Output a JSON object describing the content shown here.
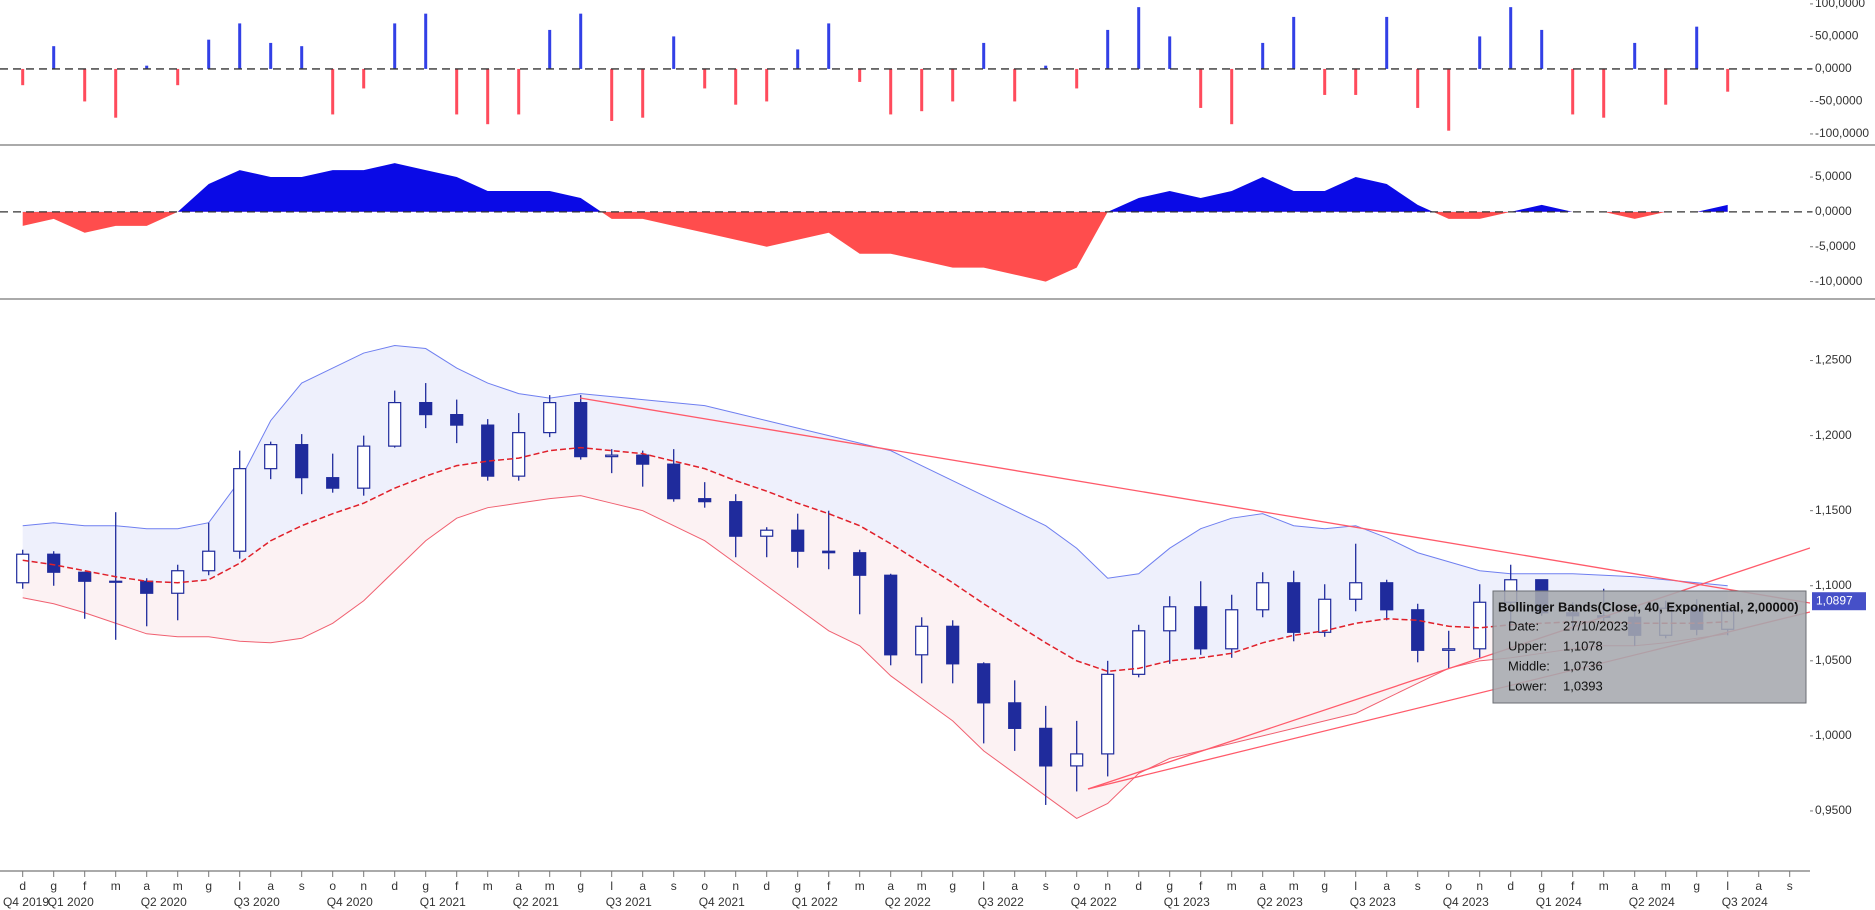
{
  "chart_data": [
    {
      "type": "bar",
      "values": [
        -25,
        35,
        -50,
        -75,
        5,
        -25,
        45,
        70,
        40,
        35,
        -70,
        -30,
        70,
        85,
        -70,
        -85,
        -70,
        60,
        85,
        -80,
        -75,
        50,
        -30,
        -55,
        -50,
        30,
        70,
        -20,
        -70,
        -65,
        -50,
        40,
        -50,
        5,
        -30,
        60,
        95,
        50,
        -60,
        -85,
        40,
        80,
        -40,
        -40,
        80,
        -60,
        -95,
        50,
        95,
        60,
        -70,
        -75,
        40,
        -55,
        65,
        -35,
        null,
        null
      ],
      "positive_color": "#3240e6",
      "negative_color": "#ff4b5c",
      "ylim": [
        -117,
        106
      ],
      "yticks": [
        {
          "value": 100,
          "label": "100,0000"
        },
        {
          "value": 50,
          "label": "50,0000"
        },
        {
          "value": 0,
          "label": "0,0000"
        },
        {
          "value": -50,
          "label": "-50,0000"
        },
        {
          "value": -100,
          "label": "-100,0000"
        }
      ],
      "zero_line": true
    },
    {
      "type": "area",
      "values": [
        -2,
        -1,
        -3,
        -2,
        -2,
        0,
        4,
        6,
        5,
        5,
        6,
        6,
        7,
        6,
        5,
        3,
        3,
        3,
        2,
        -1,
        -1,
        -2,
        -3,
        -4,
        -5,
        -4,
        -3,
        -6,
        -6,
        -7,
        -8,
        -8,
        -9,
        -10,
        -8,
        0,
        2,
        3,
        2,
        3,
        5,
        3,
        3,
        5,
        4,
        1,
        -1,
        -1,
        0,
        1,
        0,
        0,
        -1,
        0,
        0,
        1,
        null,
        null
      ],
      "positive_color": "#0a0ae6",
      "negative_color": "#ff4d4d",
      "ylim": [
        -12.5,
        9.6
      ],
      "yticks": [
        {
          "value": 5,
          "label": "5,0000"
        },
        {
          "value": 0,
          "label": "0,0000"
        },
        {
          "value": -5,
          "label": "-5,0000"
        },
        {
          "value": -10,
          "label": "-10,0000"
        }
      ],
      "zero_line": true
    },
    {
      "type": "candlestick",
      "categories": [
        "d",
        "g",
        "f",
        "m",
        "a",
        "m",
        "g",
        "l",
        "a",
        "s",
        "o",
        "n",
        "d",
        "g",
        "f",
        "m",
        "a",
        "m",
        "g",
        "l",
        "a",
        "s",
        "o",
        "n",
        "d",
        "g",
        "f",
        "m",
        "a",
        "m",
        "g",
        "l",
        "a",
        "s",
        "o",
        "n",
        "d",
        "g",
        "f",
        "m",
        "a",
        "m",
        "g",
        "l",
        "a",
        "s",
        "o",
        "n",
        "d",
        "g",
        "f",
        "m",
        "a",
        "m",
        "g",
        "l",
        "a",
        "s"
      ],
      "quarters": [
        "Q4 2019",
        "Q1 2020",
        "Q2 2020",
        "Q3 2020",
        "Q4 2020",
        "Q1 2021",
        "Q2 2021",
        "Q3 2021",
        "Q4 2021",
        "Q1 2022",
        "Q2 2022",
        "Q3 2022",
        "Q4 2022",
        "Q1 2023",
        "Q2 2023",
        "Q3 2023",
        "Q4 2023",
        "Q1 2024",
        "Q2 2024",
        "Q3 2024"
      ],
      "open": [
        1.102,
        1.121,
        1.109,
        1.103,
        1.103,
        1.095,
        1.11,
        1.123,
        1.178,
        1.194,
        1.172,
        1.165,
        1.193,
        1.222,
        1.214,
        1.207,
        1.173,
        1.202,
        1.222,
        1.186,
        1.187,
        1.181,
        1.158,
        1.156,
        1.133,
        1.137,
        1.123,
        1.122,
        1.107,
        1.054,
        1.073,
        1.048,
        1.022,
        1.005,
        0.98,
        0.988,
        1.041,
        1.07,
        1.086,
        1.058,
        1.084,
        1.102,
        1.069,
        1.091,
        1.102,
        1.084,
        1.057,
        1.058,
        1.089,
        1.104,
        1.082,
        1.08,
        1.079,
        1.067,
        1.085,
        1.071,
        null,
        null
      ],
      "high": [
        1.124,
        1.123,
        1.109,
        1.149,
        1.105,
        1.114,
        1.142,
        1.19,
        1.196,
        1.201,
        1.188,
        1.2,
        1.23,
        1.235,
        1.224,
        1.211,
        1.215,
        1.227,
        1.227,
        1.191,
        1.19,
        1.191,
        1.169,
        1.161,
        1.139,
        1.148,
        1.15,
        1.124,
        1.108,
        1.079,
        1.077,
        1.049,
        1.037,
        1.02,
        1.01,
        1.05,
        1.074,
        1.093,
        1.103,
        1.094,
        1.109,
        1.11,
        1.101,
        1.128,
        1.104,
        1.088,
        1.07,
        1.101,
        1.114,
        1.104,
        1.089,
        1.098,
        1.088,
        1.09,
        1.091,
        1.084,
        null,
        null
      ],
      "low": [
        1.098,
        1.1,
        1.078,
        1.064,
        1.073,
        1.077,
        1.107,
        1.118,
        1.171,
        1.161,
        1.162,
        1.16,
        1.192,
        1.205,
        1.195,
        1.17,
        1.17,
        1.199,
        1.184,
        1.175,
        1.166,
        1.156,
        1.152,
        1.119,
        1.119,
        1.112,
        1.111,
        1.081,
        1.047,
        1.035,
        1.035,
        0.995,
        0.99,
        0.954,
        0.963,
        0.973,
        1.039,
        1.048,
        1.054,
        1.052,
        1.079,
        1.063,
        1.066,
        1.083,
        1.077,
        1.049,
        1.045,
        1.052,
        1.072,
        1.08,
        1.07,
        1.076,
        1.06,
        1.065,
        1.067,
        1.067,
        null,
        null
      ],
      "close": [
        1.121,
        1.109,
        1.103,
        1.103,
        1.095,
        1.11,
        1.123,
        1.178,
        1.194,
        1.172,
        1.165,
        1.193,
        1.222,
        1.214,
        1.207,
        1.173,
        1.202,
        1.222,
        1.186,
        1.187,
        1.181,
        1.158,
        1.156,
        1.133,
        1.137,
        1.123,
        1.122,
        1.107,
        1.054,
        1.073,
        1.048,
        1.022,
        1.005,
        0.98,
        0.988,
        1.041,
        1.07,
        1.086,
        1.058,
        1.084,
        1.102,
        1.069,
        1.091,
        1.102,
        1.084,
        1.057,
        1.058,
        1.089,
        1.104,
        1.082,
        1.08,
        1.079,
        1.067,
        1.085,
        1.071,
        1.083,
        null,
        null
      ],
      "up_color": "#ffffff",
      "down_color": "#1f2b9c",
      "outline_color": "#1f2b9c",
      "bands": {
        "upper": [
          1.14,
          1.142,
          1.14,
          1.14,
          1.138,
          1.138,
          1.142,
          1.17,
          1.21,
          1.235,
          1.245,
          1.255,
          1.26,
          1.258,
          1.245,
          1.235,
          1.228,
          1.225,
          1.228,
          1.226,
          1.224,
          1.222,
          1.22,
          1.215,
          1.21,
          1.205,
          1.2,
          1.195,
          1.19,
          1.18,
          1.17,
          1.16,
          1.15,
          1.14,
          1.125,
          1.105,
          1.108,
          1.125,
          1.138,
          1.145,
          1.148,
          1.14,
          1.138,
          1.14,
          1.132,
          1.122,
          1.116,
          1.11,
          1.108,
          1.108,
          1.108,
          1.107,
          1.106,
          1.104,
          1.102,
          1.1,
          null,
          null
        ],
        "middle": [
          1.117,
          1.114,
          1.11,
          1.106,
          1.103,
          1.102,
          1.104,
          1.115,
          1.13,
          1.14,
          1.148,
          1.155,
          1.165,
          1.173,
          1.18,
          1.183,
          1.185,
          1.19,
          1.192,
          1.19,
          1.188,
          1.183,
          1.178,
          1.17,
          1.163,
          1.155,
          1.148,
          1.14,
          1.128,
          1.115,
          1.102,
          1.088,
          1.075,
          1.062,
          1.05,
          1.043,
          1.045,
          1.05,
          1.052,
          1.055,
          1.062,
          1.067,
          1.07,
          1.075,
          1.078,
          1.077,
          1.073,
          1.072,
          1.074,
          1.075,
          1.076,
          1.076,
          1.075,
          1.075,
          1.075,
          1.076,
          null,
          null
        ],
        "lower": [
          1.092,
          1.088,
          1.082,
          1.075,
          1.068,
          1.066,
          1.066,
          1.063,
          1.062,
          1.065,
          1.075,
          1.09,
          1.11,
          1.13,
          1.145,
          1.152,
          1.155,
          1.158,
          1.16,
          1.155,
          1.15,
          1.14,
          1.13,
          1.115,
          1.1,
          1.085,
          1.07,
          1.06,
          1.04,
          1.025,
          1.01,
          0.99,
          0.975,
          0.96,
          0.945,
          0.955,
          0.975,
          0.985,
          0.99,
          0.995,
          1.0,
          1.005,
          1.01,
          1.015,
          1.025,
          1.035,
          1.045,
          1.05,
          1.052,
          1.055,
          1.058,
          1.06,
          1.06,
          1.062,
          1.065,
          1.068,
          null,
          null
        ],
        "upper_color": "#6f7ff0",
        "middle_color": "#e0202a",
        "lower_color": "#f06070",
        "upper_fill": "#eef0fc",
        "lower_fill": "#fcf2f3"
      },
      "ylim": [
        0.91,
        1.291
      ],
      "yticks": [
        {
          "value": 1.25,
          "label": "1,2500"
        },
        {
          "value": 1.2,
          "label": "1,2000"
        },
        {
          "value": 1.15,
          "label": "1,1500"
        },
        {
          "value": 1.1,
          "label": "1,1000"
        },
        {
          "value": 1.05,
          "label": "1,0500"
        },
        {
          "value": 1,
          "label": "1,0000"
        },
        {
          "value": 0.95,
          "label": "0,9500"
        }
      ],
      "last_price": {
        "value": 1.0897,
        "label": "1,0897"
      }
    }
  ],
  "tooltip": {
    "title": "Bollinger Bands(Close, 40, Exponential, 2,00000)",
    "rows": [
      [
        "Date:",
        "27/10/2023"
      ],
      [
        "Upper:",
        "1,1078"
      ],
      [
        "Middle:",
        "1,0736"
      ],
      [
        "Lower:",
        "1,0393"
      ]
    ]
  }
}
